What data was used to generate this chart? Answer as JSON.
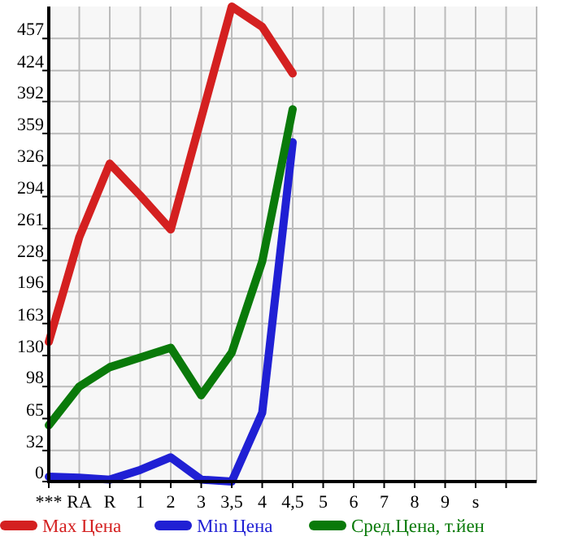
{
  "chart_data": {
    "type": "line",
    "categories": [
      "***",
      "RA",
      "R",
      "1",
      "2",
      "3",
      "3,5",
      "4",
      "4,5",
      "5",
      "6",
      "7",
      "8",
      "9",
      "s",
      null
    ],
    "series": [
      {
        "name": "Max Цена",
        "color": "#d42020",
        "values": [
          144,
          252,
          328,
          295,
          260,
          375,
          490,
          469,
          421,
          null,
          null,
          null,
          null,
          null,
          null,
          null
        ]
      },
      {
        "name": "Min Цена",
        "color": "#2020d4",
        "values": [
          5,
          4,
          2,
          12,
          25,
          2,
          0,
          71,
          350,
          null,
          null,
          null,
          null,
          null,
          null,
          null
        ]
      },
      {
        "name": "Сред.Цена, т.йен",
        "color": "#0a7a0a",
        "values": [
          58,
          98,
          118,
          128,
          138,
          89,
          133,
          227,
          384,
          null,
          null,
          null,
          null,
          null,
          null,
          null
        ]
      }
    ],
    "ylim": [
      0,
      490
    ],
    "yticks": [
      0,
      32,
      65,
      98,
      130,
      163,
      196,
      228,
      261,
      294,
      326,
      359,
      392,
      424,
      457
    ],
    "grid": true,
    "legend": "bottom",
    "marker": "none",
    "line_style": "solid"
  }
}
